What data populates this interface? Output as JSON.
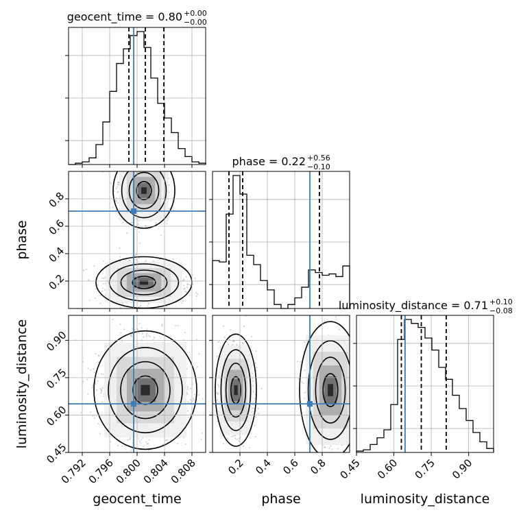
{
  "chart_data": {
    "type": "corner",
    "parameters": [
      "geocent_time",
      "phase",
      "luminosity_distance"
    ],
    "titles": {
      "geocent_time": {
        "label": "geocent_time = 0.80",
        "up": "+0.00",
        "down": "−0.00"
      },
      "phase": {
        "label": "phase = 0.22",
        "up": "+0.56",
        "down": "−0.10"
      },
      "luminosity_distance": {
        "label": "luminosity_distance = 0.71",
        "up": "+0.10",
        "down": "−0.08"
      }
    },
    "ranges": {
      "geocent_time": [
        0.79,
        0.81
      ],
      "phase": [
        0.0,
        1.0
      ],
      "luminosity_distance": [
        0.45,
        1.0
      ]
    },
    "injection": {
      "geocent_time": 0.7995,
      "phase": 0.71,
      "luminosity_distance": 0.645
    },
    "quantiles": {
      "geocent_time": [
        0.7988,
        0.8012,
        0.8039
      ],
      "phase": [
        0.12,
        0.22,
        0.78
      ],
      "luminosity_distance": [
        0.63,
        0.71,
        0.81
      ]
    },
    "x_ticks": {
      "geocent_time": [
        "0.792",
        "0.796",
        "0.800",
        "0.804",
        "0.808"
      ],
      "phase": [
        "0.2",
        "0.4",
        "0.6",
        "0.8"
      ],
      "luminosity_distance": [
        "0.45",
        "0.60",
        "0.75",
        "0.90"
      ]
    },
    "y_ticks": {
      "phase": [
        "0.2",
        "0.4",
        "0.6",
        "0.8"
      ],
      "luminosity_distance": [
        "0.45",
        "0.60",
        "0.75",
        "0.90"
      ]
    },
    "histograms": {
      "geocent_time": {
        "edges": [
          0.79,
          0.791,
          0.792,
          0.793,
          0.794,
          0.795,
          0.796,
          0.797,
          0.798,
          0.799,
          0.8,
          0.801,
          0.802,
          0.803,
          0.804,
          0.805,
          0.806,
          0.807,
          0.808,
          0.809,
          0.81
        ],
        "heights": [
          0,
          0.01,
          0.02,
          0.05,
          0.15,
          0.32,
          0.55,
          0.76,
          0.87,
          0.97,
          1.0,
          0.88,
          0.65,
          0.46,
          0.35,
          0.24,
          0.12,
          0.06,
          0.02,
          0.01
        ]
      },
      "phase": {
        "edges": [
          0.0,
          0.05,
          0.1,
          0.15,
          0.2,
          0.25,
          0.3,
          0.35,
          0.4,
          0.45,
          0.5,
          0.55,
          0.6,
          0.65,
          0.7,
          0.75,
          0.8,
          0.85,
          0.9,
          0.95,
          1.0
        ],
        "heights": [
          0.36,
          0.35,
          0.71,
          1.0,
          0.86,
          0.4,
          0.33,
          0.21,
          0.14,
          0.03,
          0.0,
          0.03,
          0.08,
          0.16,
          0.29,
          0.27,
          0.25,
          0.26,
          0.24,
          0.32
        ]
      },
      "luminosity_distance": {
        "edges": [
          0.45,
          0.4775,
          0.505,
          0.5325,
          0.56,
          0.5875,
          0.615,
          0.6425,
          0.67,
          0.6975,
          0.725,
          0.7525,
          0.78,
          0.8075,
          0.835,
          0.8625,
          0.89,
          0.9175,
          0.945,
          0.9725,
          1.0
        ],
        "heights": [
          0.01,
          0.02,
          0.06,
          0.11,
          0.17,
          0.36,
          0.85,
          1.0,
          0.97,
          0.94,
          0.86,
          0.77,
          0.64,
          0.55,
          0.43,
          0.33,
          0.24,
          0.15,
          0.08,
          0.03
        ]
      }
    },
    "scatter_panels": [
      {
        "x": "geocent_time",
        "y": "phase"
      },
      {
        "x": "geocent_time",
        "y": "luminosity_distance"
      },
      {
        "x": "phase",
        "y": "luminosity_distance"
      }
    ],
    "grid": true,
    "colors": {
      "injection": "#3f7db8",
      "contour": "#000000",
      "sample": "#9a9a9a",
      "grid": "#b0b0b0"
    }
  }
}
